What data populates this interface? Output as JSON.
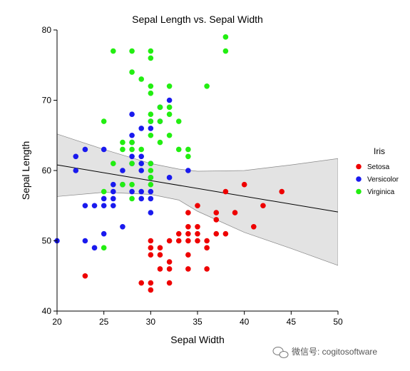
{
  "chart_data": {
    "type": "scatter",
    "title": "Sepal Length vs. Sepal Width",
    "xlabel": "Sepal Width",
    "ylabel": "Sepal Length",
    "xlim": [
      20,
      50
    ],
    "ylim": [
      40,
      80
    ],
    "xticks": [
      20,
      25,
      30,
      35,
      40,
      45,
      50
    ],
    "yticks": [
      40,
      50,
      60,
      70,
      80
    ],
    "grid": false,
    "legend": {
      "title": "Iris",
      "placement": "right"
    },
    "regression": {
      "line": [
        [
          20,
          60.8
        ],
        [
          50,
          54.1
        ]
      ],
      "band_upper": [
        [
          20,
          65.2
        ],
        [
          25,
          63.0
        ],
        [
          30,
          61.0
        ],
        [
          33,
          60.2
        ],
        [
          35,
          59.9
        ],
        [
          40,
          60.0
        ],
        [
          45,
          60.8
        ],
        [
          50,
          61.7
        ]
      ],
      "band_lower": [
        [
          20,
          56.3
        ],
        [
          25,
          56.9
        ],
        [
          30,
          56.6
        ],
        [
          33,
          55.8
        ],
        [
          35,
          54.2
        ],
        [
          40,
          51.2
        ],
        [
          45,
          48.9
        ],
        [
          50,
          46.5
        ]
      ]
    },
    "series": [
      {
        "name": "Setosa",
        "color": "#ee0000",
        "points": [
          [
            23,
            45
          ],
          [
            29,
            44
          ],
          [
            30,
            44
          ],
          [
            30,
            43
          ],
          [
            30,
            48
          ],
          [
            30,
            49
          ],
          [
            30,
            50
          ],
          [
            31,
            48
          ],
          [
            31,
            49
          ],
          [
            31,
            46
          ],
          [
            32,
            44
          ],
          [
            32,
            46
          ],
          [
            32,
            47
          ],
          [
            32,
            50
          ],
          [
            33,
            50
          ],
          [
            33,
            51
          ],
          [
            34,
            46
          ],
          [
            34,
            48
          ],
          [
            34,
            50
          ],
          [
            34,
            51
          ],
          [
            34,
            52
          ],
          [
            34,
            54
          ],
          [
            35,
            50
          ],
          [
            35,
            51
          ],
          [
            35,
            52
          ],
          [
            35,
            55
          ],
          [
            36,
            46
          ],
          [
            36,
            49
          ],
          [
            36,
            50
          ],
          [
            37,
            51
          ],
          [
            37,
            53
          ],
          [
            37,
            54
          ],
          [
            38,
            51
          ],
          [
            38,
            57
          ],
          [
            39,
            54
          ],
          [
            40,
            58
          ],
          [
            41,
            52
          ],
          [
            42,
            55
          ],
          [
            44,
            57
          ]
        ]
      },
      {
        "name": "Versicolor",
        "color": "#1a1aee",
        "points": [
          [
            20,
            50
          ],
          [
            22,
            60
          ],
          [
            22,
            62
          ],
          [
            23,
            50
          ],
          [
            23,
            55
          ],
          [
            23,
            63
          ],
          [
            24,
            49
          ],
          [
            24,
            55
          ],
          [
            25,
            51
          ],
          [
            25,
            55
          ],
          [
            25,
            56
          ],
          [
            25,
            63
          ],
          [
            26,
            55
          ],
          [
            26,
            56
          ],
          [
            26,
            57
          ],
          [
            26,
            58
          ],
          [
            27,
            52
          ],
          [
            27,
            58
          ],
          [
            27,
            60
          ],
          [
            28,
            57
          ],
          [
            28,
            61
          ],
          [
            28,
            62
          ],
          [
            28,
            64
          ],
          [
            28,
            65
          ],
          [
            28,
            68
          ],
          [
            29,
            56
          ],
          [
            29,
            57
          ],
          [
            29,
            60
          ],
          [
            29,
            61
          ],
          [
            29,
            62
          ],
          [
            29,
            66
          ],
          [
            30,
            54
          ],
          [
            30,
            56
          ],
          [
            30,
            57
          ],
          [
            30,
            59
          ],
          [
            30,
            61
          ],
          [
            30,
            66
          ],
          [
            30,
            67
          ],
          [
            31,
            67
          ],
          [
            31,
            69
          ],
          [
            32,
            59
          ],
          [
            32,
            70
          ],
          [
            34,
            60
          ]
        ]
      },
      {
        "name": "Virginica",
        "color": "#22ee11",
        "points": [
          [
            25,
            49
          ],
          [
            25,
            57
          ],
          [
            25,
            67
          ],
          [
            26,
            61
          ],
          [
            26,
            77
          ],
          [
            27,
            58
          ],
          [
            27,
            63
          ],
          [
            27,
            64
          ],
          [
            28,
            56
          ],
          [
            28,
            58
          ],
          [
            28,
            61
          ],
          [
            28,
            63
          ],
          [
            28,
            64
          ],
          [
            28,
            74
          ],
          [
            28,
            77
          ],
          [
            29,
            63
          ],
          [
            29,
            73
          ],
          [
            30,
            58
          ],
          [
            30,
            59
          ],
          [
            30,
            60
          ],
          [
            30,
            61
          ],
          [
            30,
            65
          ],
          [
            30,
            67
          ],
          [
            30,
            68
          ],
          [
            30,
            71
          ],
          [
            30,
            72
          ],
          [
            30,
            76
          ],
          [
            30,
            77
          ],
          [
            31,
            64
          ],
          [
            31,
            67
          ],
          [
            31,
            69
          ],
          [
            32,
            65
          ],
          [
            32,
            68
          ],
          [
            32,
            69
          ],
          [
            32,
            72
          ],
          [
            33,
            63
          ],
          [
            33,
            67
          ],
          [
            34,
            62
          ],
          [
            34,
            63
          ],
          [
            36,
            72
          ],
          [
            38,
            77
          ],
          [
            38,
            79
          ]
        ]
      }
    ]
  },
  "watermark": "微信号: cogitosoftware"
}
